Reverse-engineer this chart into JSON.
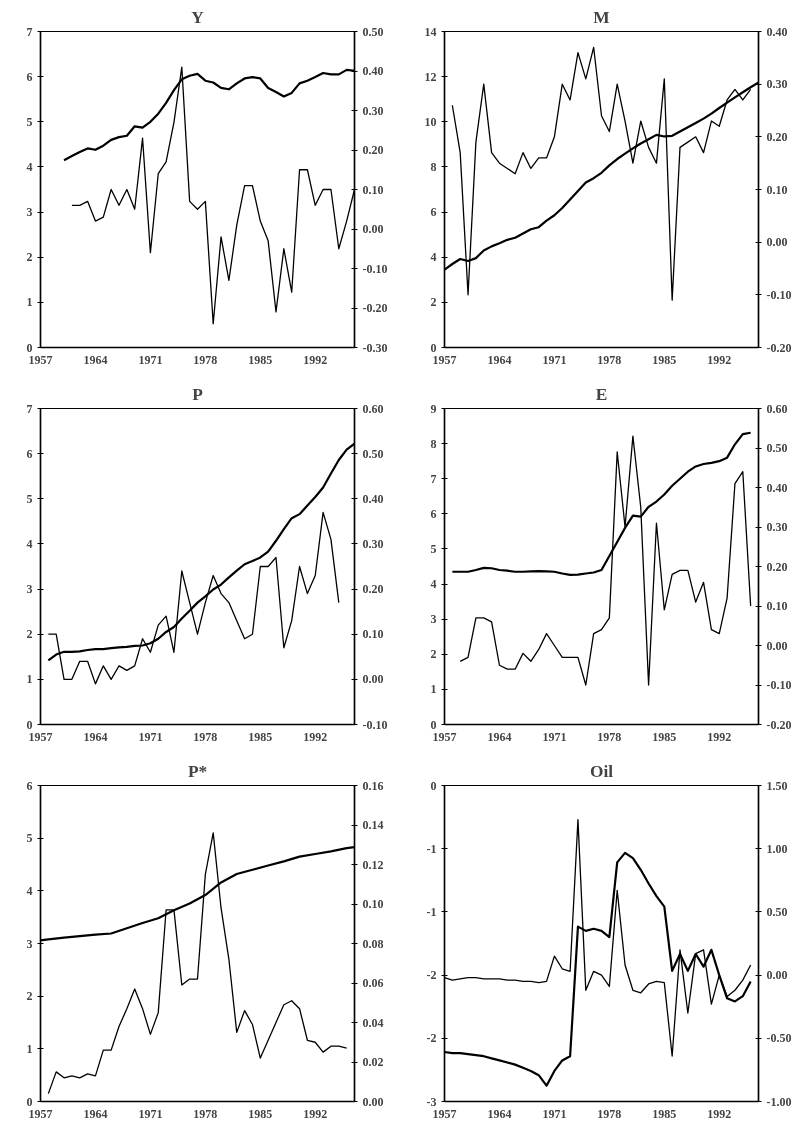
{
  "chart_data": [
    {
      "type": "line",
      "title": "Y",
      "xlim": [
        1957,
        1997
      ],
      "xticks": [
        1957,
        1964,
        1971,
        1978,
        1985,
        1992
      ],
      "ylim": [
        0,
        7
      ],
      "yticks": [
        0,
        1,
        2,
        3,
        4,
        5,
        6,
        7
      ],
      "y2lim": [
        -0.3,
        0.5
      ],
      "y2ticks": [
        {
          "value": -0.3,
          "label": "-0.30"
        },
        {
          "value": -0.2,
          "label": "-0.20"
        },
        {
          "value": -0.1,
          "label": "-0.10"
        },
        {
          "value": 0,
          "label": "0.00"
        },
        {
          "value": 0.1,
          "label": "0.10"
        },
        {
          "value": 0.2,
          "label": "0.20"
        },
        {
          "value": 0.3,
          "label": "0.30"
        },
        {
          "value": 0.4,
          "label": "0.40"
        },
        {
          "value": 0.5,
          "label": "0.50"
        }
      ],
      "series": [
        {
          "color": "#000000",
          "x": [
            1960,
            1961,
            1962,
            1963,
            1964,
            1965,
            1966,
            1967,
            1968,
            1969,
            1970,
            1971,
            1972,
            1973,
            1974,
            1975,
            1976,
            1977,
            1978,
            1979,
            1980,
            1981,
            1982,
            1983,
            1984,
            1985,
            1986,
            1987,
            1988,
            1989,
            1990,
            1991,
            1992,
            1993,
            1994,
            1995,
            1996,
            1997
          ],
          "values": [
            4.15,
            4.24,
            4.33,
            4.41,
            4.38,
            4.47,
            4.6,
            4.66,
            4.69,
            4.9,
            4.87,
            5.0,
            5.18,
            5.42,
            5.7,
            5.94,
            6.02,
            6.06,
            5.91,
            5.87,
            5.75,
            5.72,
            5.85,
            5.96,
            5.99,
            5.96,
            5.75,
            5.66,
            5.56,
            5.64,
            5.85,
            5.91,
            5.99,
            6.08,
            6.05,
            6.05,
            6.15,
            6.13
          ]
        },
        {
          "color": "#000000",
          "axis": "y2",
          "x": [
            1961,
            1962,
            1963,
            1964,
            1965,
            1966,
            1967,
            1968,
            1969,
            1970,
            1971,
            1972,
            1973,
            1974,
            1975,
            1976,
            1977,
            1978,
            1979,
            1980,
            1981,
            1982,
            1983,
            1984,
            1985,
            1986,
            1987,
            1988,
            1989,
            1990,
            1991,
            1992,
            1993,
            1994,
            1995,
            1996,
            1997
          ],
          "values": [
            0.06,
            0.06,
            0.07,
            0.02,
            0.03,
            0.1,
            0.06,
            0.1,
            0.05,
            0.23,
            -0.06,
            0.14,
            0.17,
            0.27,
            0.41,
            0.07,
            0.05,
            0.07,
            -0.24,
            -0.02,
            -0.13,
            0.01,
            0.11,
            0.11,
            0.02,
            -0.03,
            -0.21,
            -0.05,
            -0.16,
            0.15,
            0.15,
            0.06,
            0.1,
            0.1,
            -0.05,
            0.02,
            0.1
          ]
        }
      ]
    },
    {
      "type": "line",
      "title": "M",
      "xlim": [
        1957,
        1997
      ],
      "xticks": [
        1957,
        1964,
        1971,
        1978,
        1985,
        1992
      ],
      "ylim": [
        0,
        14
      ],
      "yticks": [
        0,
        2,
        4,
        6,
        8,
        10,
        12,
        14
      ],
      "y2lim": [
        -0.2,
        0.4
      ],
      "y2ticks": [
        {
          "value": -0.2,
          "label": "-0.20"
        },
        {
          "value": -0.1,
          "label": "-0.10"
        },
        {
          "value": 0,
          "label": "0.00"
        },
        {
          "value": 0.1,
          "label": "0.10"
        },
        {
          "value": 0.2,
          "label": "0.20"
        },
        {
          "value": 0.3,
          "label": "0.30"
        },
        {
          "value": 0.4,
          "label": "0.40"
        }
      ],
      "series": [
        {
          "color": "#000000",
          "x": [
            1957,
            1958,
            1959,
            1960,
            1961,
            1962,
            1963,
            1964,
            1965,
            1966,
            1967,
            1968,
            1969,
            1970,
            1971,
            1972,
            1973,
            1974,
            1975,
            1976,
            1977,
            1978,
            1979,
            1980,
            1981,
            1982,
            1983,
            1984,
            1985,
            1986,
            1987,
            1988,
            1989,
            1990,
            1991,
            1992,
            1993,
            1994,
            1995,
            1996,
            1997
          ],
          "values": [
            3.45,
            3.7,
            3.92,
            3.83,
            3.96,
            4.3,
            4.48,
            4.62,
            4.77,
            4.86,
            5.05,
            5.24,
            5.33,
            5.62,
            5.86,
            6.18,
            6.56,
            6.93,
            7.31,
            7.5,
            7.74,
            8.07,
            8.35,
            8.59,
            8.82,
            9.04,
            9.23,
            9.42,
            9.35,
            9.38,
            9.57,
            9.76,
            9.95,
            10.14,
            10.36,
            10.61,
            10.85,
            11.08,
            11.31,
            11.53,
            11.74
          ]
        },
        {
          "color": "#000000",
          "axis": "y2",
          "x": [
            1958,
            1959,
            1960,
            1961,
            1962,
            1963,
            1964,
            1965,
            1966,
            1967,
            1968,
            1969,
            1970,
            1971,
            1972,
            1973,
            1974,
            1975,
            1976,
            1977,
            1978,
            1979,
            1980,
            1981,
            1982,
            1983,
            1984,
            1985,
            1986,
            1987,
            1988,
            1989,
            1990,
            1991,
            1992,
            1993,
            1994,
            1995,
            1996
          ],
          "values": [
            0.26,
            0.17,
            -0.1,
            0.19,
            0.3,
            0.17,
            0.15,
            0.14,
            0.13,
            0.17,
            0.14,
            0.16,
            0.16,
            0.2,
            0.3,
            0.27,
            0.36,
            0.31,
            0.37,
            0.24,
            0.21,
            0.3,
            0.23,
            0.15,
            0.23,
            0.18,
            0.15,
            0.31,
            -0.11,
            0.18,
            0.19,
            0.2,
            0.17,
            0.23,
            0.22,
            0.27,
            0.29,
            0.27,
            0.29
          ]
        }
      ]
    },
    {
      "type": "line",
      "title": "P",
      "xlim": [
        1957,
        1997
      ],
      "xticks": [
        1957,
        1964,
        1971,
        1978,
        1985,
        1992
      ],
      "ylim": [
        0,
        7
      ],
      "yticks": [
        0,
        1,
        2,
        3,
        4,
        5,
        6,
        7
      ],
      "y2lim": [
        -0.1,
        0.6
      ],
      "y2ticks": [
        {
          "value": -0.1,
          "label": "-0.10"
        },
        {
          "value": 0,
          "label": "0.00"
        },
        {
          "value": 0.1,
          "label": "0.10"
        },
        {
          "value": 0.2,
          "label": "0.20"
        },
        {
          "value": 0.3,
          "label": "0.30"
        },
        {
          "value": 0.4,
          "label": "0.40"
        },
        {
          "value": 0.5,
          "label": "0.50"
        },
        {
          "value": 0.6,
          "label": "0.60"
        }
      ],
      "series": [
        {
          "color": "#000000",
          "x": [
            1958,
            1959,
            1960,
            1961,
            1962,
            1963,
            1964,
            1965,
            1966,
            1967,
            1968,
            1969,
            1970,
            1971,
            1972,
            1973,
            1974,
            1975,
            1976,
            1977,
            1978,
            1979,
            1980,
            1981,
            1982,
            1983,
            1984,
            1985,
            1986,
            1987,
            1988,
            1989,
            1990,
            1991,
            1992,
            1993,
            1994,
            1995,
            1996,
            1997
          ],
          "values": [
            1.42,
            1.55,
            1.61,
            1.61,
            1.62,
            1.65,
            1.67,
            1.67,
            1.69,
            1.71,
            1.72,
            1.74,
            1.75,
            1.8,
            1.9,
            2.05,
            2.16,
            2.35,
            2.52,
            2.7,
            2.84,
            2.99,
            3.1,
            3.26,
            3.41,
            3.55,
            3.62,
            3.7,
            3.83,
            4.07,
            4.33,
            4.57,
            4.66,
            4.85,
            5.04,
            5.25,
            5.56,
            5.86,
            6.09,
            6.22
          ]
        },
        {
          "color": "#000000",
          "axis": "y2",
          "x": [
            1958,
            1959,
            1960,
            1961,
            1962,
            1963,
            1964,
            1965,
            1966,
            1967,
            1968,
            1969,
            1970,
            1971,
            1972,
            1973,
            1974,
            1975,
            1976,
            1977,
            1978,
            1979,
            1980,
            1981,
            1982,
            1983,
            1984,
            1985,
            1986,
            1987,
            1988,
            1989,
            1990,
            1991,
            1992,
            1993,
            1994,
            1995
          ],
          "values": [
            0.1,
            0.1,
            0.0,
            0.0,
            0.04,
            0.04,
            -0.01,
            0.03,
            0.0,
            0.03,
            0.02,
            0.03,
            0.09,
            0.06,
            0.12,
            0.14,
            0.06,
            0.24,
            0.17,
            0.1,
            0.17,
            0.23,
            0.19,
            0.17,
            0.13,
            0.09,
            0.1,
            0.25,
            0.25,
            0.27,
            0.07,
            0.13,
            0.25,
            0.19,
            0.23,
            0.37,
            0.31,
            0.17
          ]
        }
      ]
    },
    {
      "type": "line",
      "title": "E",
      "xlim": [
        1957,
        1997
      ],
      "xticks": [
        1957,
        1964,
        1971,
        1978,
        1985,
        1992
      ],
      "ylim": [
        0,
        9
      ],
      "yticks": [
        0,
        1,
        2,
        3,
        4,
        5,
        6,
        7,
        8,
        9
      ],
      "y2lim": [
        -0.2,
        0.6
      ],
      "y2ticks": [
        {
          "value": -0.2,
          "label": "-0.20"
        },
        {
          "value": -0.1,
          "label": "-0.10"
        },
        {
          "value": 0,
          "label": "0.00"
        },
        {
          "value": 0.1,
          "label": "0.10"
        },
        {
          "value": 0.2,
          "label": "0.20"
        },
        {
          "value": 0.3,
          "label": "0.30"
        },
        {
          "value": 0.4,
          "label": "0.40"
        },
        {
          "value": 0.5,
          "label": "0.50"
        },
        {
          "value": 0.6,
          "label": "0.60"
        }
      ],
      "series": [
        {
          "color": "#000000",
          "x": [
            1958,
            1959,
            1960,
            1961,
            1962,
            1963,
            1964,
            1965,
            1966,
            1967,
            1968,
            1969,
            1970,
            1971,
            1972,
            1973,
            1974,
            1975,
            1976,
            1977,
            1978,
            1979,
            1980,
            1981,
            1982,
            1983,
            1984,
            1985,
            1986,
            1987,
            1988,
            1989,
            1990,
            1991,
            1992,
            1993,
            1994,
            1995,
            1996
          ],
          "values": [
            4.35,
            4.35,
            4.35,
            4.4,
            4.46,
            4.45,
            4.4,
            4.38,
            4.35,
            4.35,
            4.36,
            4.37,
            4.36,
            4.35,
            4.3,
            4.26,
            4.27,
            4.3,
            4.33,
            4.4,
            4.8,
            5.2,
            5.6,
            5.95,
            5.92,
            6.2,
            6.35,
            6.55,
            6.8,
            7.0,
            7.2,
            7.35,
            7.42,
            7.45,
            7.5,
            7.6,
            7.98,
            8.27,
            8.31
          ]
        },
        {
          "color": "#000000",
          "axis": "y2",
          "x": [
            1959,
            1960,
            1961,
            1962,
            1963,
            1964,
            1965,
            1966,
            1967,
            1968,
            1969,
            1970,
            1971,
            1972,
            1973,
            1974,
            1975,
            1976,
            1977,
            1978,
            1979,
            1980,
            1981,
            1982,
            1983,
            1984,
            1985,
            1986,
            1987,
            1988,
            1989,
            1990,
            1991,
            1992,
            1993,
            1994,
            1995,
            1996
          ],
          "values": [
            -0.04,
            -0.03,
            0.07,
            0.07,
            0.06,
            -0.05,
            -0.06,
            -0.06,
            -0.02,
            -0.04,
            -0.01,
            0.03,
            0.0,
            -0.03,
            -0.03,
            -0.03,
            -0.1,
            0.03,
            0.04,
            0.07,
            0.49,
            0.3,
            0.53,
            0.35,
            -0.1,
            0.31,
            0.09,
            0.18,
            0.19,
            0.19,
            0.11,
            0.16,
            0.04,
            0.03,
            0.12,
            0.41,
            0.44,
            0.1
          ]
        }
      ]
    },
    {
      "type": "line",
      "title": "P*",
      "xlim": [
        1957,
        1997
      ],
      "xticks": [
        1957,
        1964,
        1971,
        1978,
        1985,
        1992
      ],
      "ylim": [
        0,
        6
      ],
      "yticks": [
        0,
        1,
        2,
        3,
        4,
        5,
        6
      ],
      "y2lim": [
        0,
        0.16
      ],
      "y2ticks": [
        {
          "value": 0,
          "label": "0.00"
        },
        {
          "value": 0.02,
          "label": "0.02"
        },
        {
          "value": 0.04,
          "label": "0.04"
        },
        {
          "value": 0.06,
          "label": "0.06"
        },
        {
          "value": 0.08,
          "label": "0.08"
        },
        {
          "value": 0.1,
          "label": "0.10"
        },
        {
          "value": 0.12,
          "label": "0.12"
        },
        {
          "value": 0.14,
          "label": "0.14"
        },
        {
          "value": 0.16,
          "label": "0.16"
        }
      ],
      "series": [
        {
          "color": "#000000",
          "x": [
            1957,
            1958,
            1960,
            1962,
            1964,
            1966,
            1968,
            1970,
            1972,
            1974,
            1976,
            1978,
            1980,
            1982,
            1984,
            1986,
            1988,
            1990,
            1992,
            1994,
            1996,
            1997
          ],
          "values": [
            3.06,
            3.08,
            3.11,
            3.14,
            3.17,
            3.19,
            3.29,
            3.39,
            3.48,
            3.63,
            3.76,
            3.92,
            4.16,
            4.32,
            4.4,
            4.48,
            4.56,
            4.65,
            4.7,
            4.75,
            4.81,
            4.83
          ]
        },
        {
          "color": "#000000",
          "axis": "y2",
          "x": [
            1958,
            1959,
            1960,
            1961,
            1962,
            1963,
            1964,
            1965,
            1966,
            1967,
            1968,
            1969,
            1970,
            1971,
            1972,
            1973,
            1974,
            1975,
            1976,
            1977,
            1978,
            1979,
            1980,
            1981,
            1982,
            1983,
            1984,
            1985,
            1986,
            1987,
            1988,
            1989,
            1990,
            1991,
            1992,
            1993,
            1994,
            1995,
            1996
          ],
          "values": [
            0.004,
            0.015,
            0.012,
            0.013,
            0.012,
            0.014,
            0.013,
            0.026,
            0.026,
            0.038,
            0.047,
            0.057,
            0.047,
            0.034,
            0.045,
            0.097,
            0.097,
            0.059,
            0.062,
            0.062,
            0.115,
            0.136,
            0.098,
            0.072,
            0.035,
            0.046,
            0.039,
            0.022,
            0.031,
            0.04,
            0.049,
            0.051,
            0.047,
            0.031,
            0.03,
            0.025,
            0.028,
            0.028,
            0.027
          ]
        }
      ]
    },
    {
      "type": "line",
      "title": "Oil",
      "xlim": [
        1957,
        1997
      ],
      "xticks": [
        1957,
        1964,
        1971,
        1978,
        1985,
        1992
      ],
      "ylim": [
        -3,
        0
      ],
      "yticks": [
        {
          "value": -3,
          "label": "-3"
        },
        {
          "value": -2.4,
          "label": "-2"
        },
        {
          "value": -1.8,
          "label": "-2"
        },
        {
          "value": -1.2,
          "label": "-1"
        },
        {
          "value": -0.6,
          "label": "-1"
        },
        {
          "value": 0,
          "label": "0"
        }
      ],
      "y2lim": [
        -1,
        1.5
      ],
      "y2ticks": [
        {
          "value": -1,
          "label": "-1.00"
        },
        {
          "value": -0.5,
          "label": "-0.50"
        },
        {
          "value": 0,
          "label": "0.00"
        },
        {
          "value": 0.5,
          "label": "0.50"
        },
        {
          "value": 1,
          "label": "1.00"
        },
        {
          "value": 1.5,
          "label": "1.50"
        }
      ],
      "series": [
        {
          "color": "#000000",
          "x": [
            1957,
            1958,
            1959,
            1960,
            1961,
            1962,
            1963,
            1964,
            1965,
            1966,
            1967,
            1968,
            1969,
            1970,
            1971,
            1972,
            1973,
            1974,
            1975,
            1976,
            1977,
            1978,
            1979,
            1980,
            1981,
            1982,
            1983,
            1984,
            1985,
            1986,
            1987,
            1988,
            1989,
            1990,
            1991,
            1992,
            1993,
            1994,
            1995,
            1996
          ],
          "values": [
            -2.53,
            -2.54,
            -2.54,
            -2.55,
            -2.56,
            -2.57,
            -2.59,
            -2.61,
            -2.63,
            -2.65,
            -2.68,
            -2.71,
            -2.75,
            -2.85,
            -2.71,
            -2.61,
            -2.57,
            -1.34,
            -1.38,
            -1.36,
            -1.38,
            -1.44,
            -0.73,
            -0.64,
            -0.69,
            -0.8,
            -0.93,
            -1.05,
            -1.15,
            -1.76,
            -1.6,
            -1.76,
            -1.6,
            -1.72,
            -1.56,
            -1.8,
            -2.02,
            -2.05,
            -2.0,
            -1.86
          ]
        },
        {
          "color": "#000000",
          "axis": "y2",
          "x": [
            1957,
            1958,
            1959,
            1960,
            1961,
            1962,
            1963,
            1964,
            1965,
            1966,
            1967,
            1968,
            1969,
            1970,
            1971,
            1972,
            1973,
            1974,
            1975,
            1976,
            1977,
            1978,
            1979,
            1980,
            1981,
            1982,
            1983,
            1984,
            1985,
            1986,
            1987,
            1988,
            1989,
            1990,
            1991,
            1992,
            1993,
            1994,
            1995,
            1996
          ],
          "values": [
            -0.02,
            -0.04,
            -0.03,
            -0.02,
            -0.02,
            -0.03,
            -0.03,
            -0.03,
            -0.04,
            -0.04,
            -0.05,
            -0.05,
            -0.06,
            -0.05,
            0.15,
            0.05,
            0.03,
            1.23,
            -0.12,
            0.03,
            0.0,
            -0.09,
            0.67,
            0.08,
            -0.12,
            -0.14,
            -0.07,
            -0.05,
            -0.06,
            -0.64,
            0.2,
            -0.3,
            0.17,
            0.2,
            -0.23,
            0.0,
            -0.17,
            -0.12,
            -0.04,
            0.08
          ]
        }
      ]
    }
  ]
}
